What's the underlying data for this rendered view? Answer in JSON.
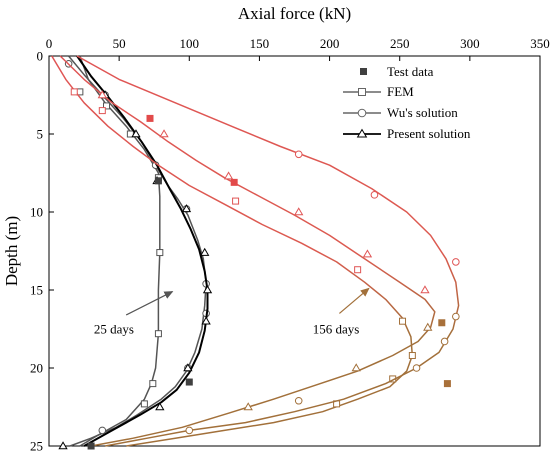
{
  "chart_data": {
    "type": "line",
    "xlabel": "Axial force (kN)",
    "ylabel": "Depth (m)",
    "x_axis_position": "top",
    "y_axis_inverted": true,
    "xlim": [
      0,
      350
    ],
    "ylim": [
      0,
      25
    ],
    "x_ticks": [
      0,
      50,
      100,
      150,
      200,
      250,
      300,
      350
    ],
    "y_ticks": [
      0,
      5,
      10,
      15,
      20,
      25
    ],
    "grid": false,
    "legend_position": "top-right",
    "legend": [
      {
        "label": "Test data",
        "style": "square-marker"
      },
      {
        "label": "FEM",
        "style": "line-open-square"
      },
      {
        "label": "Wu's solution",
        "style": "line-open-circle"
      },
      {
        "label": "Present solution",
        "style": "line-open-triangle"
      }
    ],
    "colors": {
      "day25": "#555555",
      "present25": "#000000",
      "red": "#e05555",
      "brown": "#a2703a",
      "test_dark": "#404040",
      "test_red": "#e24a4a",
      "test_brown": "#a8703a"
    },
    "series": [
      {
        "name": "FEM",
        "group": "25 days",
        "color_key": "day25",
        "marker": "square",
        "points": [
          [
            22,
            0
          ],
          [
            28,
            1.5
          ],
          [
            40,
            3
          ],
          [
            55,
            4.5
          ],
          [
            68,
            6
          ],
          [
            78,
            7.5
          ],
          [
            79,
            9
          ],
          [
            79,
            12.6
          ],
          [
            78,
            15
          ],
          [
            78,
            17.8
          ],
          [
            76,
            20
          ],
          [
            73,
            21
          ],
          [
            68,
            22
          ],
          [
            55,
            23.3
          ],
          [
            35,
            24.3
          ],
          [
            22,
            25
          ]
        ],
        "marker_points": [
          [
            22,
            2.3
          ],
          [
            41,
            3.2
          ],
          [
            58,
            5
          ],
          [
            78,
            7.8
          ],
          [
            79,
            12.6
          ],
          [
            78,
            17.8
          ],
          [
            74,
            21
          ],
          [
            68,
            22.3
          ]
        ]
      },
      {
        "name": "Wu's solution",
        "group": "25 days",
        "color_key": "day25",
        "marker": "circle",
        "points": [
          [
            14,
            0
          ],
          [
            25,
            1.2
          ],
          [
            38,
            2.5
          ],
          [
            53,
            4
          ],
          [
            66,
            5.5
          ],
          [
            76,
            7
          ],
          [
            84,
            8.2
          ],
          [
            92,
            9.2
          ],
          [
            99,
            10.2
          ],
          [
            106,
            11.8
          ],
          [
            110,
            13
          ],
          [
            112,
            14.5
          ],
          [
            111,
            16
          ],
          [
            109,
            17.5
          ],
          [
            104,
            19
          ],
          [
            98,
            20.2
          ],
          [
            90,
            21.2
          ],
          [
            80,
            22
          ],
          [
            63,
            23
          ],
          [
            48,
            23.8
          ],
          [
            30,
            24.5
          ],
          [
            15,
            25
          ]
        ],
        "marker_points": [
          [
            14,
            0.5
          ],
          [
            40,
            2.5
          ],
          [
            76,
            7
          ],
          [
            98,
            9.8
          ],
          [
            112,
            14.6
          ],
          [
            112,
            16.5
          ],
          [
            99,
            20
          ],
          [
            38,
            24
          ]
        ]
      },
      {
        "name": "Present solution",
        "group": "25 days",
        "color_key": "present25",
        "marker": "triangle",
        "points": [
          [
            20,
            0
          ],
          [
            30,
            1.3
          ],
          [
            42,
            2.6
          ],
          [
            54,
            4
          ],
          [
            66,
            5.5
          ],
          [
            77,
            7
          ],
          [
            86,
            8.5
          ],
          [
            94,
            9.8
          ],
          [
            101,
            11.1
          ],
          [
            107,
            12.4
          ],
          [
            111,
            13.8
          ],
          [
            113,
            15
          ],
          [
            113,
            16.2
          ],
          [
            111,
            17.6
          ],
          [
            107,
            19
          ],
          [
            100,
            20.3
          ],
          [
            91,
            21.4
          ],
          [
            80,
            22.2
          ],
          [
            65,
            23
          ],
          [
            45,
            24
          ],
          [
            25,
            25
          ]
        ],
        "marker_points": [
          [
            40,
            2.5
          ],
          [
            62,
            5
          ],
          [
            77,
            8
          ],
          [
            98,
            9.8
          ],
          [
            111,
            12.6
          ],
          [
            113,
            15
          ],
          [
            112,
            17
          ],
          [
            99,
            20
          ],
          [
            79,
            22.5
          ],
          [
            10,
            25
          ]
        ]
      },
      {
        "name": "FEM",
        "group": "156 days",
        "color_key": "red",
        "marker": "square",
        "points": [
          [
            2,
            0
          ],
          [
            12,
            1.5
          ],
          [
            25,
            3
          ],
          [
            42,
            4.5
          ],
          [
            60,
            5.8
          ],
          [
            78,
            7
          ],
          [
            100,
            8.3
          ],
          [
            125,
            9.5
          ],
          [
            152,
            10.8
          ],
          [
            180,
            12
          ],
          [
            205,
            13.2
          ],
          [
            225,
            14.5
          ],
          [
            240,
            15.6
          ],
          [
            252,
            16.8
          ],
          [
            258,
            18
          ],
          [
            259,
            19.2
          ],
          [
            255,
            20.2
          ],
          [
            243,
            21.2
          ],
          [
            220,
            22
          ],
          [
            195,
            22.8
          ],
          [
            160,
            23.5
          ],
          [
            125,
            24
          ],
          [
            90,
            24.5
          ],
          [
            55,
            25
          ]
        ],
        "marker_points": [
          [
            18,
            2.3
          ],
          [
            38,
            3.5
          ],
          [
            133,
            9.3
          ],
          [
            220,
            13.7
          ],
          [
            252,
            17
          ],
          [
            259,
            19.2
          ],
          [
            245,
            20.7
          ],
          [
            205,
            22.3
          ]
        ]
      },
      {
        "name": "Wu's solution",
        "group": "156 days",
        "color_key": "red",
        "marker": "circle",
        "points": [
          [
            20,
            0
          ],
          [
            50,
            1.5
          ],
          [
            90,
            3
          ],
          [
            130,
            4.5
          ],
          [
            165,
            5.8
          ],
          [
            200,
            7
          ],
          [
            230,
            8.5
          ],
          [
            255,
            10
          ],
          [
            272,
            11.5
          ],
          [
            283,
            13
          ],
          [
            290,
            14.5
          ],
          [
            292,
            16
          ],
          [
            288,
            17.5
          ],
          [
            278,
            19
          ],
          [
            262,
            20
          ],
          [
            240,
            21
          ],
          [
            210,
            22
          ],
          [
            175,
            22.8
          ],
          [
            140,
            23.5
          ],
          [
            100,
            24
          ],
          [
            70,
            24.5
          ],
          [
            40,
            25
          ]
        ],
        "marker_points": [
          [
            178,
            6.3
          ],
          [
            232,
            8.9
          ],
          [
            290,
            13.2
          ],
          [
            290,
            16.7
          ],
          [
            282,
            18.3
          ],
          [
            262,
            20
          ],
          [
            178,
            22.1
          ],
          [
            100,
            24
          ]
        ]
      },
      {
        "name": "Present solution",
        "group": "156 days",
        "color_key": "red",
        "marker": "triangle",
        "points": [
          [
            8,
            0
          ],
          [
            25,
            1.5
          ],
          [
            45,
            3
          ],
          [
            65,
            4.2
          ],
          [
            85,
            5.5
          ],
          [
            105,
            6.7
          ],
          [
            125,
            7.8
          ],
          [
            150,
            9
          ],
          [
            175,
            10.2
          ],
          [
            200,
            11.5
          ],
          [
            225,
            13
          ],
          [
            250,
            14.5
          ],
          [
            268,
            15.6
          ],
          [
            275,
            16.4
          ],
          [
            272,
            17.4
          ],
          [
            263,
            18.3
          ],
          [
            245,
            19.2
          ],
          [
            220,
            20.2
          ],
          [
            190,
            21.1
          ],
          [
            160,
            22
          ],
          [
            128,
            22.9
          ],
          [
            95,
            23.8
          ],
          [
            60,
            24.5
          ],
          [
            30,
            25
          ]
        ],
        "marker_points": [
          [
            38,
            2.5
          ],
          [
            82,
            5
          ],
          [
            128,
            7.7
          ],
          [
            178,
            10
          ],
          [
            227,
            12.7
          ],
          [
            268,
            15
          ],
          [
            270,
            17.4
          ],
          [
            219,
            20
          ],
          [
            142,
            22.5
          ]
        ]
      }
    ],
    "test_data": [
      {
        "group": "25 days",
        "color_key": "test_dark",
        "points": [
          [
            78,
            8
          ],
          [
            100,
            20.9
          ],
          [
            30,
            25
          ]
        ]
      },
      {
        "group": "156 days",
        "color_key": "test_red",
        "points": [
          [
            72,
            4
          ],
          [
            132,
            8.1
          ]
        ]
      },
      {
        "group": "156 days",
        "color_key": "test_brown",
        "points": [
          [
            280,
            17.1
          ],
          [
            284,
            21
          ]
        ]
      }
    ],
    "annotations": [
      {
        "text": "25 days",
        "x": 32,
        "y": 17.8,
        "arrow_from": [
          55,
          16.6
        ],
        "arrow_to": [
          88,
          15.1
        ],
        "color_key": "day25"
      },
      {
        "text": "156 days",
        "x": 188,
        "y": 17.8,
        "arrow_from": [
          207,
          16.5
        ],
        "arrow_to": [
          228,
          14.9
        ],
        "color_key": "brown"
      }
    ]
  }
}
